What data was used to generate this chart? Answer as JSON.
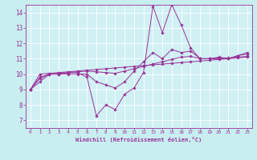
{
  "title": "",
  "xlabel": "Windchill (Refroidissement éolien,°C)",
  "ylabel": "",
  "bg_color": "#c8eef0",
  "plot_bg_color": "#d0f0f4",
  "line_color": "#993399",
  "grid_color": "#ffffff",
  "xlim": [
    -0.5,
    23.5
  ],
  "ylim": [
    6.5,
    14.5
  ],
  "xticks": [
    0,
    1,
    2,
    3,
    4,
    5,
    6,
    7,
    8,
    9,
    10,
    11,
    12,
    13,
    14,
    15,
    16,
    17,
    18,
    19,
    20,
    21,
    22,
    23
  ],
  "yticks": [
    7,
    8,
    9,
    10,
    11,
    12,
    13,
    14
  ],
  "series": [
    [
      9.0,
      9.7,
      10.0,
      10.0,
      10.1,
      10.1,
      9.8,
      7.3,
      8.0,
      7.7,
      8.7,
      9.1,
      10.1,
      14.4,
      12.7,
      14.5,
      13.2,
      11.7,
      11.0,
      11.0,
      11.1,
      11.0,
      11.2,
      11.4
    ],
    [
      9.0,
      10.0,
      10.05,
      10.1,
      10.15,
      10.2,
      10.25,
      10.3,
      10.35,
      10.4,
      10.45,
      10.5,
      10.55,
      10.6,
      10.65,
      10.7,
      10.75,
      10.8,
      10.85,
      10.9,
      10.95,
      11.0,
      11.05,
      11.1
    ],
    [
      9.0,
      9.8,
      10.0,
      10.05,
      10.1,
      10.15,
      10.2,
      10.15,
      10.1,
      10.05,
      10.2,
      10.35,
      10.5,
      10.65,
      10.8,
      10.95,
      11.1,
      11.15,
      11.0,
      11.0,
      11.05,
      11.05,
      11.1,
      11.15
    ],
    [
      9.0,
      9.5,
      10.0,
      10.0,
      10.0,
      10.0,
      10.0,
      9.5,
      9.3,
      9.1,
      9.5,
      10.2,
      10.8,
      11.4,
      11.0,
      11.6,
      11.4,
      11.5,
      11.0,
      11.0,
      11.0,
      11.0,
      11.2,
      11.3
    ]
  ]
}
